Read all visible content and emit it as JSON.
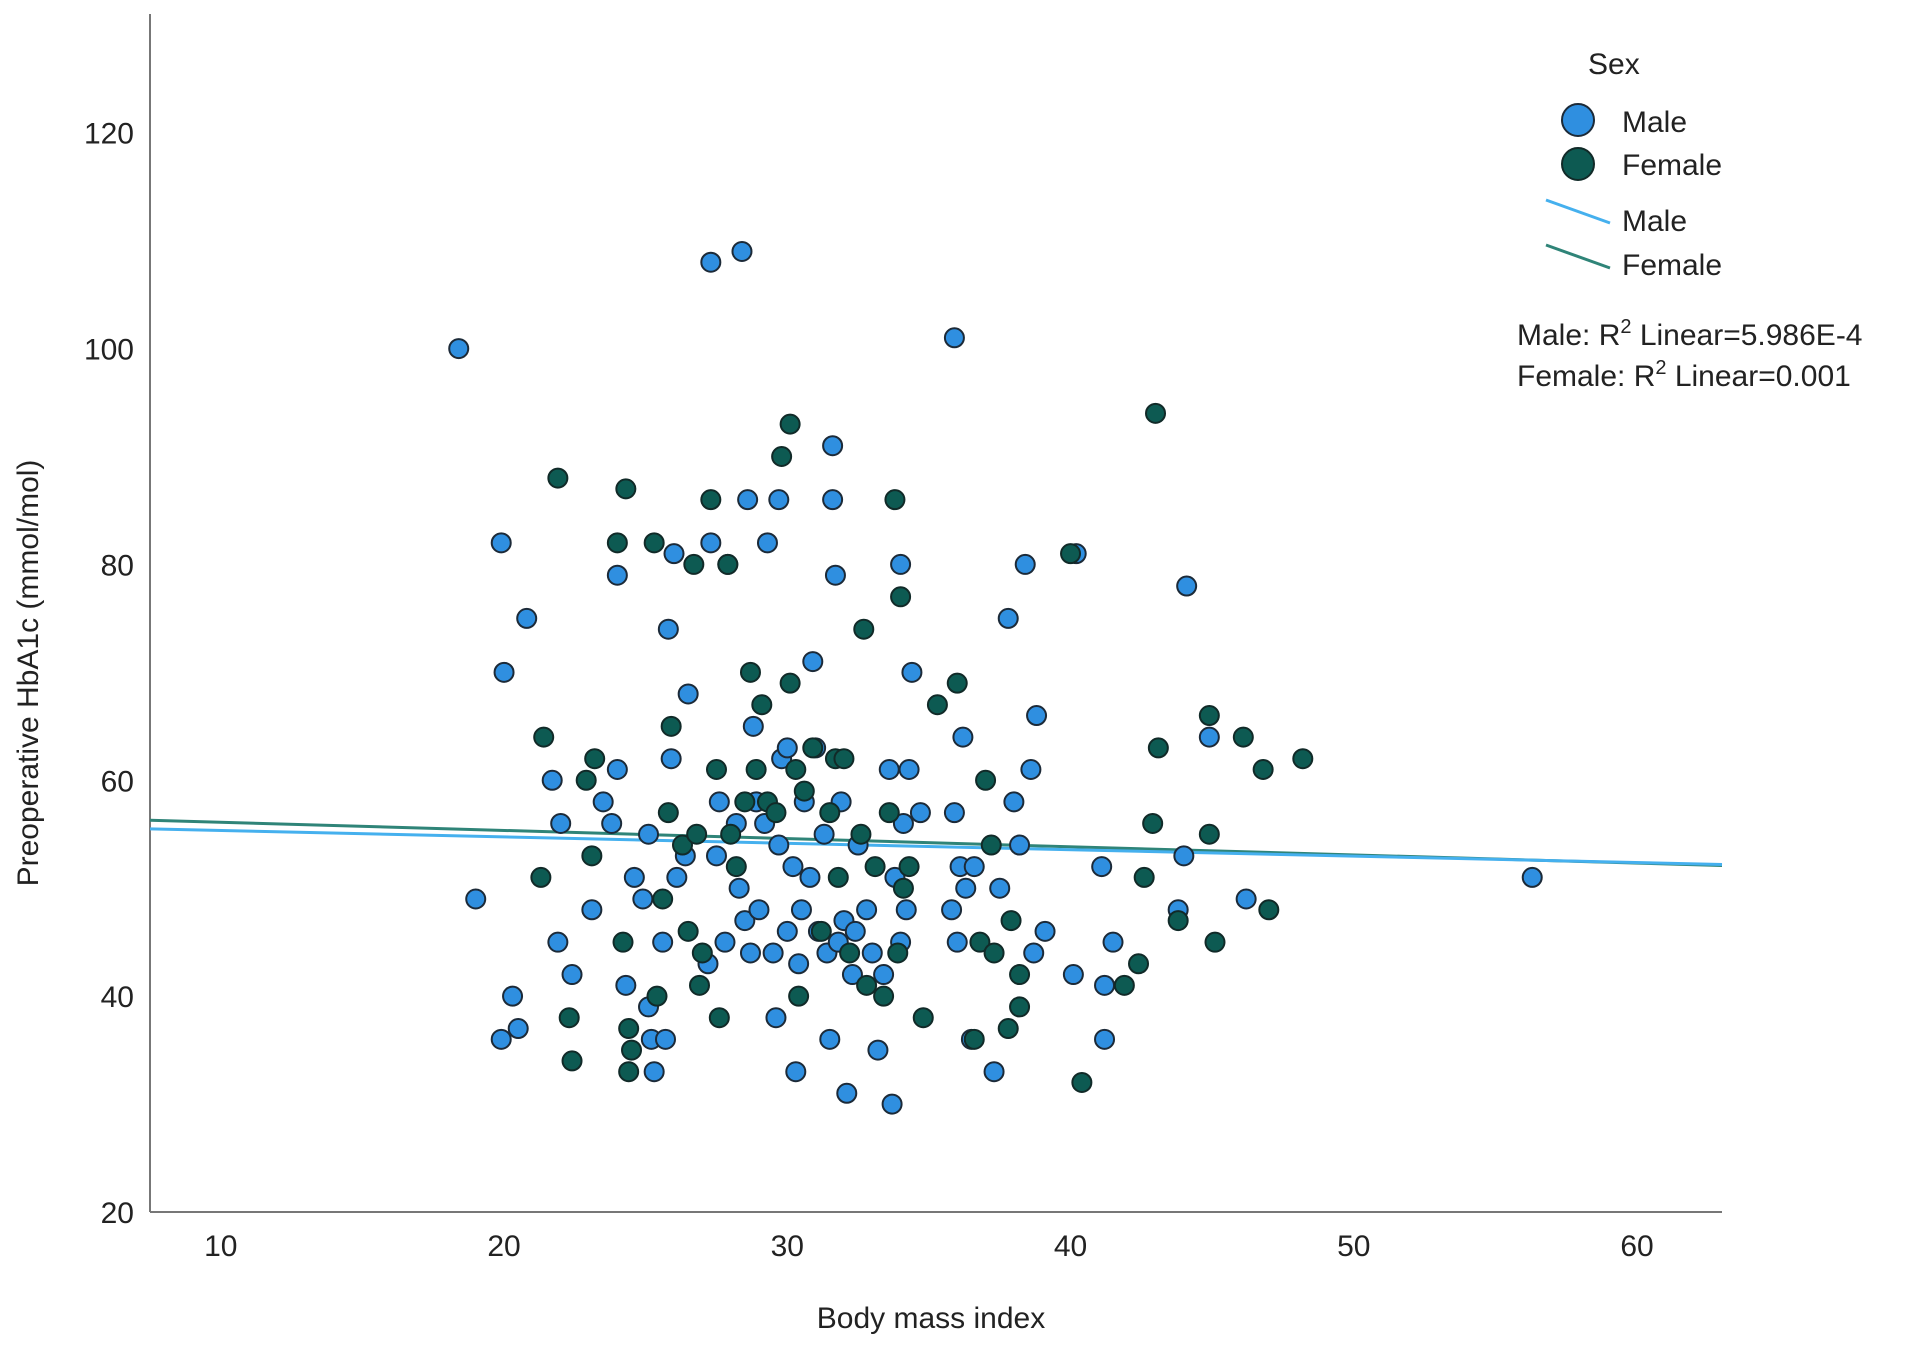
{
  "chart_data": {
    "type": "scatter",
    "title": "",
    "xlabel": "Body mass index",
    "ylabel": "Preoperative HbA1c (mmol/mol)",
    "xlim": [
      7.5,
      63
    ],
    "ylim": [
      20,
      131
    ],
    "xticks": [
      10,
      20,
      30,
      40,
      50,
      60
    ],
    "yticks": [
      20,
      40,
      60,
      80,
      100,
      120
    ],
    "grid": false,
    "legend": {
      "title": "Sex",
      "placement": "top-right",
      "marker_entries": [
        "Male",
        "Female"
      ],
      "line_entries": [
        "Male",
        "Female"
      ]
    },
    "annotations": {
      "male": {
        "prefix": "Male: R",
        "sup": "2",
        "suffix": " Linear=5.986E-4"
      },
      "female": {
        "prefix": "Female: R",
        "sup": "2",
        "suffix": " Linear=0.001"
      }
    },
    "colors": {
      "Male": "#2f8fe0",
      "Female": "#0d5a52",
      "male_line": "#45b0ee",
      "female_line": "#2f8478"
    },
    "series": [
      {
        "name": "Male",
        "fit_line": {
          "x": [
            7.5,
            63
          ],
          "y": [
            55.5,
            52.2
          ]
        },
        "points": [
          [
            18.4,
            100
          ],
          [
            27.3,
            108
          ],
          [
            28.4,
            109
          ],
          [
            35.9,
            101
          ],
          [
            19.9,
            82
          ],
          [
            20.8,
            75
          ],
          [
            20.0,
            70
          ],
          [
            19.0,
            49
          ],
          [
            21.7,
            60
          ],
          [
            22.0,
            56
          ],
          [
            21.9,
            45
          ],
          [
            22.4,
            42
          ],
          [
            20.3,
            40
          ],
          [
            19.9,
            36
          ],
          [
            20.5,
            37
          ],
          [
            23.1,
            48
          ],
          [
            23.5,
            58
          ],
          [
            23.8,
            56
          ],
          [
            24.0,
            61
          ],
          [
            24.0,
            79
          ],
          [
            24.3,
            41
          ],
          [
            24.6,
            51
          ],
          [
            24.9,
            49
          ],
          [
            25.1,
            55
          ],
          [
            25.1,
            39
          ],
          [
            25.2,
            36
          ],
          [
            25.3,
            33
          ],
          [
            25.6,
            45
          ],
          [
            25.7,
            36
          ],
          [
            25.8,
            74
          ],
          [
            25.9,
            62
          ],
          [
            26.0,
            81
          ],
          [
            26.1,
            51
          ],
          [
            26.4,
            53
          ],
          [
            26.5,
            68
          ],
          [
            27.3,
            82
          ],
          [
            27.6,
            58
          ],
          [
            27.5,
            53
          ],
          [
            27.2,
            43
          ],
          [
            27.8,
            45
          ],
          [
            27.9,
            80
          ],
          [
            28.2,
            56
          ],
          [
            28.3,
            50
          ],
          [
            28.5,
            47
          ],
          [
            28.6,
            86
          ],
          [
            28.7,
            44
          ],
          [
            28.8,
            65
          ],
          [
            28.9,
            58
          ],
          [
            29.0,
            48
          ],
          [
            29.2,
            56
          ],
          [
            29.3,
            82
          ],
          [
            29.5,
            44
          ],
          [
            29.6,
            38
          ],
          [
            29.7,
            86
          ],
          [
            29.7,
            54
          ],
          [
            29.8,
            62
          ],
          [
            30.0,
            63
          ],
          [
            30.0,
            46
          ],
          [
            30.2,
            52
          ],
          [
            30.3,
            33
          ],
          [
            30.4,
            43
          ],
          [
            30.5,
            48
          ],
          [
            30.6,
            58
          ],
          [
            30.8,
            51
          ],
          [
            30.9,
            71
          ],
          [
            31.0,
            63
          ],
          [
            31.1,
            46
          ],
          [
            31.3,
            55
          ],
          [
            31.4,
            44
          ],
          [
            31.5,
            36
          ],
          [
            31.6,
            91
          ],
          [
            31.6,
            86
          ],
          [
            31.7,
            79
          ],
          [
            31.8,
            45
          ],
          [
            31.9,
            58
          ],
          [
            32.0,
            47
          ],
          [
            32.1,
            31
          ],
          [
            32.3,
            42
          ],
          [
            32.4,
            46
          ],
          [
            32.5,
            54
          ],
          [
            32.8,
            48
          ],
          [
            33.0,
            44
          ],
          [
            33.2,
            35
          ],
          [
            33.4,
            42
          ],
          [
            33.6,
            61
          ],
          [
            33.7,
            30
          ],
          [
            33.8,
            51
          ],
          [
            34.0,
            80
          ],
          [
            34.0,
            45
          ],
          [
            34.1,
            56
          ],
          [
            34.2,
            48
          ],
          [
            34.3,
            61
          ],
          [
            34.4,
            70
          ],
          [
            34.7,
            57
          ],
          [
            35.8,
            48
          ],
          [
            35.9,
            57
          ],
          [
            36.0,
            45
          ],
          [
            36.1,
            52
          ],
          [
            36.2,
            64
          ],
          [
            36.3,
            50
          ],
          [
            36.5,
            36
          ],
          [
            36.6,
            52
          ],
          [
            37.3,
            33
          ],
          [
            37.5,
            50
          ],
          [
            37.8,
            75
          ],
          [
            38.0,
            58
          ],
          [
            38.2,
            54
          ],
          [
            38.4,
            80
          ],
          [
            38.6,
            61
          ],
          [
            38.7,
            44
          ],
          [
            38.8,
            66
          ],
          [
            39.1,
            46
          ],
          [
            40.1,
            42
          ],
          [
            40.2,
            81
          ],
          [
            41.1,
            52
          ],
          [
            41.2,
            36
          ],
          [
            41.5,
            45
          ],
          [
            41.2,
            41
          ],
          [
            44.1,
            78
          ],
          [
            44.0,
            53
          ],
          [
            43.8,
            48
          ],
          [
            44.9,
            64
          ],
          [
            46.2,
            49
          ],
          [
            56.3,
            51
          ]
        ]
      },
      {
        "name": "Female",
        "fit_line": {
          "x": [
            7.5,
            63
          ],
          "y": [
            56.3,
            52.1
          ]
        },
        "points": [
          [
            21.9,
            88
          ],
          [
            21.4,
            64
          ],
          [
            21.3,
            51
          ],
          [
            22.3,
            38
          ],
          [
            22.4,
            34
          ],
          [
            22.9,
            60
          ],
          [
            23.2,
            62
          ],
          [
            23.1,
            53
          ],
          [
            24.0,
            82
          ],
          [
            24.3,
            87
          ],
          [
            24.2,
            45
          ],
          [
            24.4,
            37
          ],
          [
            24.4,
            33
          ],
          [
            24.5,
            35
          ],
          [
            25.3,
            82
          ],
          [
            25.4,
            40
          ],
          [
            25.6,
            49
          ],
          [
            25.8,
            57
          ],
          [
            25.9,
            65
          ],
          [
            26.3,
            54
          ],
          [
            26.5,
            46
          ],
          [
            26.7,
            80
          ],
          [
            26.8,
            55
          ],
          [
            26.9,
            41
          ],
          [
            27.0,
            44
          ],
          [
            27.3,
            86
          ],
          [
            27.5,
            61
          ],
          [
            27.6,
            38
          ],
          [
            27.9,
            80
          ],
          [
            28.0,
            55
          ],
          [
            28.2,
            52
          ],
          [
            28.5,
            58
          ],
          [
            28.7,
            70
          ],
          [
            28.9,
            61
          ],
          [
            29.1,
            67
          ],
          [
            29.3,
            58
          ],
          [
            29.6,
            57
          ],
          [
            29.8,
            90
          ],
          [
            30.1,
            93
          ],
          [
            30.1,
            69
          ],
          [
            30.3,
            61
          ],
          [
            30.4,
            40
          ],
          [
            30.6,
            59
          ],
          [
            30.9,
            63
          ],
          [
            31.2,
            46
          ],
          [
            31.5,
            57
          ],
          [
            31.7,
            62
          ],
          [
            31.8,
            51
          ],
          [
            32.0,
            62
          ],
          [
            32.2,
            44
          ],
          [
            32.6,
            55
          ],
          [
            32.7,
            74
          ],
          [
            32.8,
            41
          ],
          [
            33.1,
            52
          ],
          [
            33.4,
            40
          ],
          [
            33.6,
            57
          ],
          [
            33.8,
            86
          ],
          [
            33.9,
            44
          ],
          [
            34.0,
            77
          ],
          [
            34.1,
            50
          ],
          [
            34.3,
            52
          ],
          [
            34.8,
            38
          ],
          [
            35.3,
            67
          ],
          [
            36.0,
            69
          ],
          [
            36.6,
            36
          ],
          [
            36.8,
            45
          ],
          [
            37.0,
            60
          ],
          [
            37.2,
            54
          ],
          [
            37.3,
            44
          ],
          [
            37.8,
            37
          ],
          [
            37.9,
            47
          ],
          [
            38.2,
            42
          ],
          [
            38.2,
            39
          ],
          [
            40.0,
            81
          ],
          [
            40.4,
            32
          ],
          [
            41.9,
            41
          ],
          [
            42.4,
            43
          ],
          [
            42.6,
            51
          ],
          [
            42.9,
            56
          ],
          [
            43.0,
            94
          ],
          [
            43.1,
            63
          ],
          [
            43.8,
            47
          ],
          [
            44.9,
            66
          ],
          [
            44.9,
            55
          ],
          [
            45.1,
            45
          ],
          [
            46.1,
            64
          ],
          [
            46.8,
            61
          ],
          [
            47.0,
            48
          ],
          [
            48.2,
            62
          ]
        ]
      }
    ]
  }
}
